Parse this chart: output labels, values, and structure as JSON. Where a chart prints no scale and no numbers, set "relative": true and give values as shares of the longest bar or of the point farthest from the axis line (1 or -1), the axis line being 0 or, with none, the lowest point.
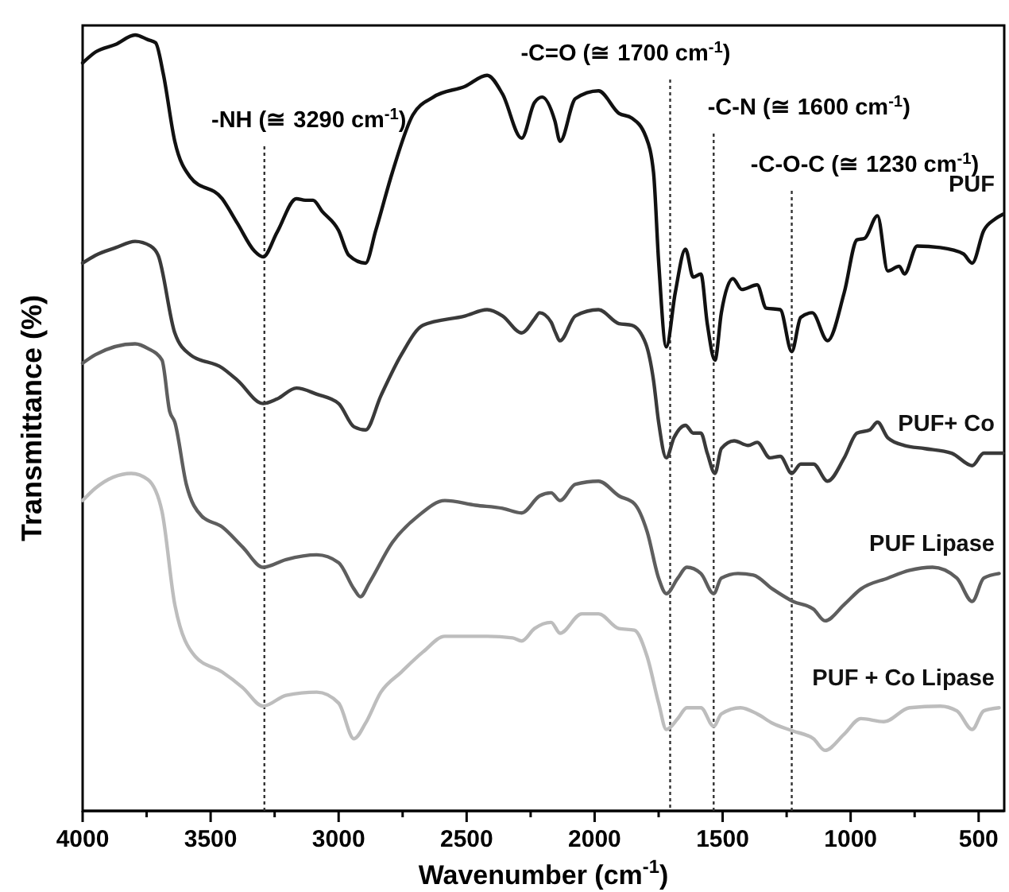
{
  "chart_data": {
    "type": "line",
    "relative": true,
    "xlabel": "Wavenumber (cm$^{-1}$)",
    "ylabel": "Transmittance (%)",
    "xlim": [
      4000,
      400
    ],
    "xticks": [
      4000,
      {
        "value": 3750,
        "label": null
      },
      3500,
      {
        "value": 3250,
        "label": null
      },
      3000,
      {
        "value": 2750,
        "label": null
      },
      2500,
      {
        "value": 2250,
        "label": null
      },
      2000,
      {
        "value": 1750,
        "label": null
      },
      1500,
      {
        "value": 1250,
        "label": null
      },
      1000,
      {
        "value": 750,
        "label": null
      },
      500
    ],
    "grid": false,
    "legend": false,
    "line_style": "solid",
    "marker": "none",
    "ref_lines": [
      {
        "axis": "x",
        "value": 3290,
        "label": "-NH (≅ 3290 cm$^{-1}$)",
        "line_style": "dotted",
        "color": "#333333"
      },
      {
        "axis": "x",
        "value": 1705,
        "label": "-C=O (≅ 1700 cm$^{-1}$)",
        "line_style": "dotted",
        "color": "#333333"
      },
      {
        "axis": "x",
        "value": 1535,
        "label": "-C-N (≅ 1600 cm$^{-1}$)",
        "line_style": "dotted",
        "color": "#333333"
      },
      {
        "axis": "x",
        "value": 1230,
        "label": "-C-O-C (≅ 1230 cm$^{-1}$)",
        "line_style": "dotted",
        "color": "#333333"
      }
    ],
    "series": [
      {
        "name": "PUF",
        "color": "#111111",
        "x": [
          4000,
          3950,
          3870,
          3795,
          3745,
          3715,
          3685,
          3640,
          3580,
          3455,
          3395,
          3330,
          3295,
          3240,
          3165,
          3130,
          3100,
          3065,
          3000,
          2960,
          2895,
          2855,
          2790,
          2710,
          2630,
          2505,
          2420,
          2360,
          2285,
          2235,
          2205,
          2155,
          2135,
          2075,
          1985,
          1905,
          1855,
          1800,
          1770,
          1750,
          1720,
          1685,
          1645,
          1615,
          1585,
          1560,
          1530,
          1505,
          1460,
          1425,
          1365,
          1330,
          1275,
          1230,
          1195,
          1150,
          1090,
          1025,
          975,
          945,
          895,
          855,
          810,
          790,
          740,
          650,
          560,
          525,
          480,
          435,
          405
        ],
        "values": [
          0.964,
          0.978,
          0.988,
          1.0,
          0.994,
          0.99,
          0.95,
          0.863,
          0.817,
          0.789,
          0.757,
          0.722,
          0.714,
          0.746,
          0.789,
          0.787,
          0.787,
          0.773,
          0.748,
          0.716,
          0.706,
          0.748,
          0.823,
          0.897,
          0.92,
          0.934,
          0.948,
          0.924,
          0.867,
          0.913,
          0.92,
          0.889,
          0.863,
          0.918,
          0.928,
          0.899,
          0.893,
          0.869,
          0.823,
          0.708,
          0.598,
          0.668,
          0.724,
          0.688,
          0.692,
          0.628,
          0.581,
          0.642,
          0.686,
          0.672,
          0.678,
          0.648,
          0.646,
          0.592,
          0.636,
          0.642,
          0.606,
          0.668,
          0.736,
          0.738,
          0.767,
          0.696,
          0.702,
          0.692,
          0.728,
          0.726,
          0.718,
          0.706,
          0.748,
          0.763,
          0.769
        ]
      },
      {
        "name": "PUF+ Co",
        "color": "#3a3a3a",
        "x": [
          4000,
          3950,
          3870,
          3795,
          3735,
          3705,
          3640,
          3580,
          3455,
          3395,
          3295,
          3240,
          3165,
          3085,
          3000,
          2940,
          2895,
          2835,
          2755,
          2670,
          2505,
          2420,
          2360,
          2285,
          2235,
          2215,
          2170,
          2155,
          2135,
          2075,
          1985,
          1905,
          1855,
          1800,
          1770,
          1750,
          1720,
          1690,
          1645,
          1615,
          1585,
          1560,
          1530,
          1505,
          1455,
          1400,
          1365,
          1315,
          1275,
          1230,
          1195,
          1145,
          1090,
          1025,
          975,
          925,
          895,
          855,
          790,
          710,
          605,
          525,
          480,
          405
        ],
        "values": [
          0.706,
          0.716,
          0.726,
          0.734,
          0.728,
          0.716,
          0.616,
          0.588,
          0.571,
          0.555,
          0.525,
          0.531,
          0.545,
          0.537,
          0.525,
          0.495,
          0.491,
          0.535,
          0.588,
          0.626,
          0.638,
          0.646,
          0.638,
          0.616,
          0.634,
          0.642,
          0.63,
          0.618,
          0.606,
          0.638,
          0.646,
          0.628,
          0.626,
          0.602,
          0.555,
          0.501,
          0.455,
          0.481,
          0.497,
          0.487,
          0.487,
          0.461,
          0.435,
          0.467,
          0.477,
          0.471,
          0.475,
          0.455,
          0.457,
          0.435,
          0.447,
          0.447,
          0.425,
          0.455,
          0.487,
          0.491,
          0.501,
          0.481,
          0.471,
          0.467,
          0.461,
          0.445,
          0.461,
          0.461
        ]
      },
      {
        "name": "PUF Lipase",
        "color": "#5e5e5e",
        "x": [
          4000,
          3950,
          3795,
          3745,
          3690,
          3660,
          3640,
          3595,
          3535,
          3455,
          3375,
          3295,
          3205,
          3085,
          3000,
          2940,
          2915,
          2880,
          2790,
          2690,
          2585,
          2465,
          2360,
          2285,
          2215,
          2170,
          2135,
          2075,
          1985,
          1905,
          1845,
          1795,
          1750,
          1720,
          1675,
          1640,
          1585,
          1535,
          1505,
          1440,
          1380,
          1305,
          1225,
          1145,
          1100,
          1025,
          960,
          855,
          770,
          680,
          585,
          525,
          480,
          420
        ],
        "values": [
          0.577,
          0.588,
          0.602,
          0.596,
          0.581,
          0.515,
          0.501,
          0.421,
          0.38,
          0.366,
          0.34,
          0.314,
          0.324,
          0.33,
          0.32,
          0.286,
          0.276,
          0.294,
          0.346,
          0.38,
          0.4,
          0.394,
          0.39,
          0.384,
          0.406,
          0.41,
          0.4,
          0.421,
          0.425,
          0.406,
          0.396,
          0.36,
          0.3,
          0.28,
          0.3,
          0.314,
          0.306,
          0.28,
          0.3,
          0.306,
          0.304,
          0.286,
          0.27,
          0.26,
          0.245,
          0.266,
          0.286,
          0.3,
          0.31,
          0.314,
          0.3,
          0.27,
          0.3,
          0.306
        ]
      },
      {
        "name": "PUF + Co Lipase",
        "color": "#bdbdbd",
        "x": [
          4000,
          3950,
          3810,
          3745,
          3690,
          3640,
          3560,
          3455,
          3375,
          3295,
          3205,
          3085,
          3000,
          2940,
          2895,
          2835,
          2755,
          2670,
          2585,
          2420,
          2320,
          2285,
          2235,
          2170,
          2135,
          2050,
          1985,
          1905,
          1845,
          1795,
          1750,
          1720,
          1675,
          1640,
          1585,
          1535,
          1505,
          1430,
          1365,
          1305,
          1225,
          1145,
          1100,
          1025,
          960,
          870,
          770,
          650,
          585,
          525,
          480,
          420
        ],
        "values": [
          0.4,
          0.416,
          0.435,
          0.427,
          0.386,
          0.266,
          0.199,
          0.179,
          0.159,
          0.135,
          0.149,
          0.153,
          0.139,
          0.093,
          0.113,
          0.153,
          0.179,
          0.205,
          0.225,
          0.225,
          0.223,
          0.219,
          0.235,
          0.243,
          0.229,
          0.254,
          0.254,
          0.235,
          0.233,
          0.199,
          0.139,
          0.105,
          0.119,
          0.133,
          0.133,
          0.109,
          0.125,
          0.133,
          0.125,
          0.113,
          0.103,
          0.093,
          0.078,
          0.099,
          0.119,
          0.115,
          0.133,
          0.135,
          0.129,
          0.105,
          0.129,
          0.133
        ]
      }
    ]
  }
}
